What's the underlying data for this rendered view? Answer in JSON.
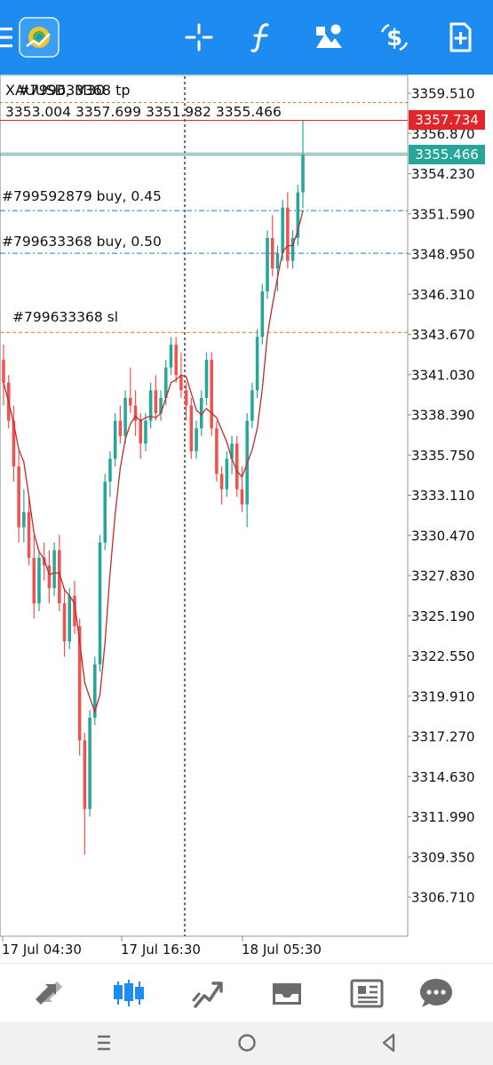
{
  "toolbar": {
    "background": "#1e8bf0",
    "icons": [
      "menu-icon",
      "app-logo",
      "crosshair-icon",
      "indicators-icon",
      "objects-icon",
      "symbol-icon",
      "new-order-icon"
    ]
  },
  "chart": {
    "symbol_line_a": "XAUUSD, M30",
    "symbol_line_b": "#799633368 tp",
    "ohlc": {
      "open": "3353.004",
      "high": "3357.699",
      "low": "3351.982",
      "close": "3355.466"
    },
    "price_axis": [
      "3359.510",
      "3356.870",
      "3354.230",
      "3351.590",
      "3348.950",
      "3346.310",
      "3343.670",
      "3341.030",
      "3338.390",
      "3335.750",
      "3333.110",
      "3330.470",
      "3327.830",
      "3325.190",
      "3322.550",
      "3319.910",
      "3317.270",
      "3314.630",
      "3311.990",
      "3309.350",
      "3306.710"
    ],
    "time_axis": [
      "17 Jul 04:30",
      "17 Jul 16:30",
      "18 Jul 05:30"
    ],
    "orders": [
      {
        "label": "#799592879 buy, 0.45",
        "price": 3351.8,
        "color": "#1e7fd8"
      },
      {
        "label": "#799633368 buy, 0.50",
        "price": 3349.0,
        "color": "#1e7fd8"
      },
      {
        "label": "#799633368 sl",
        "price": 3343.8,
        "color": "#e07a1f"
      }
    ],
    "tp_price": 3358.9,
    "ask": {
      "label": "3357.734",
      "price": 3357.734,
      "color": "#e0262a"
    },
    "bid": {
      "label": "3355.466",
      "price": 3355.466,
      "color": "#26a69a"
    },
    "bull_color": "#26a69a",
    "bear_color": "#ef5350"
  },
  "bottom_nav": {
    "icons": [
      "quotes-icon",
      "chart-icon",
      "trade-icon",
      "history-icon",
      "news-icon",
      "chat-icon"
    ],
    "active": "chart-icon",
    "active_color": "#1e8bf0"
  },
  "system_nav": {
    "icons": [
      "recents-icon",
      "home-icon",
      "back-icon"
    ]
  }
}
